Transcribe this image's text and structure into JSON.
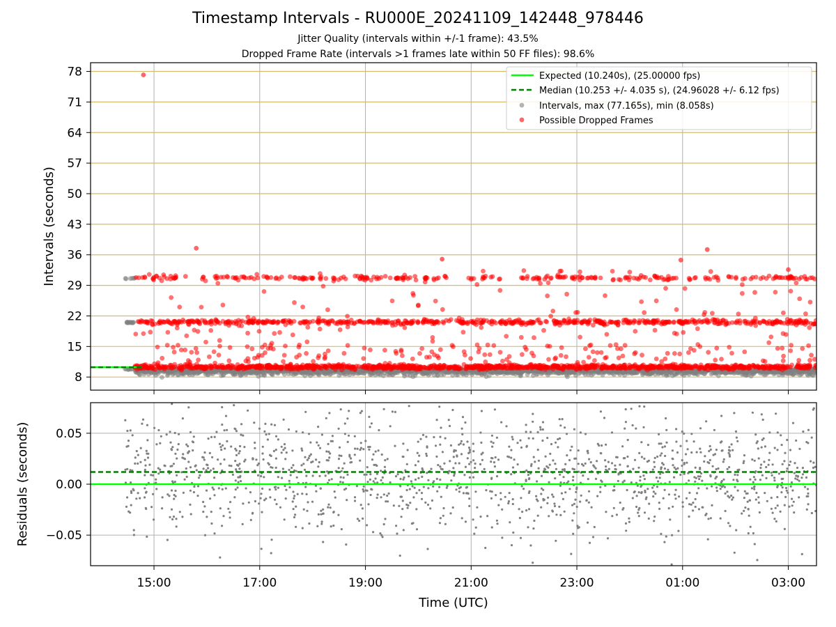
{
  "title": "Timestamp Intervals - RU000E_20241109_142448_978446",
  "subtitle_jitter": "Jitter Quality (intervals within +/-1 frame): 43.5%",
  "subtitle_dropped": "Dropped Frame Rate (intervals >1 frames late within 50 FF files): 98.6%",
  "colors": {
    "expected": "#00ff00",
    "median": "#007f00",
    "intervals": "#808080",
    "dropped": "#ff0000",
    "hgrid_top": "#d4bb6b",
    "grid": "#b0b0b0"
  },
  "chart_data": [
    {
      "type": "scatter",
      "panel": "intervals",
      "xlabel": "",
      "ylabel": "Intervals (seconds)",
      "x_axis": "Time (UTC)",
      "x_range": [
        "2024-11-09 13:48",
        "2024-11-10 03:32"
      ],
      "x_ticks": [
        "15:00",
        "17:00",
        "19:00",
        "21:00",
        "23:00",
        "01:00",
        "03:00"
      ],
      "ylim": [
        5,
        80
      ],
      "y_ticks": [
        8,
        15,
        22,
        29,
        36,
        43,
        50,
        57,
        64,
        71,
        78
      ],
      "grid": "on",
      "legend_position": "top-right",
      "legend": [
        "Expected (10.240s), (25.00000 fps)",
        "Median (10.253 +/- 4.035 s), (24.96028 +/- 6.12 fps)",
        "Intervals, max (77.165s), min (8.058s)",
        "Possible Dropped Frames"
      ],
      "expected_interval_s": 10.24,
      "median_interval_s": 10.253,
      "intervals_max_s": 77.165,
      "intervals_min_s": 8.058,
      "series": [
        {
          "name": "Intervals, max (77.165s), min (8.058s)",
          "approx_bands_s": [
            9.8,
            20.5,
            30.6
          ],
          "start_time": "14:27",
          "end_time": "03:32"
        },
        {
          "name": "Possible Dropped Frames",
          "approx_bands_s": [
            10.3,
            20.6,
            30.7
          ],
          "start_time": "14:38",
          "end_time": "03:32",
          "notable_points": [
            {
              "x": "14:48",
              "y": 77.2
            },
            {
              "x": "15:48",
              "y": 37.5
            },
            {
              "x": "20:27",
              "y": 35.0
            },
            {
              "x": "00:58",
              "y": 34.8
            },
            {
              "x": "01:28",
              "y": 37.2
            },
            {
              "x": "03:00",
              "y": 32.6
            }
          ]
        }
      ]
    },
    {
      "type": "scatter",
      "panel": "residuals",
      "xlabel": "Time (UTC)",
      "ylabel": "Residuals (seconds)",
      "x_ticks": [
        "15:00",
        "17:00",
        "19:00",
        "21:00",
        "23:00",
        "01:00",
        "03:00"
      ],
      "ylim": [
        -0.08,
        0.08
      ],
      "y_ticks": [
        "−0.05",
        "0.00",
        "0.05"
      ],
      "grid": "on",
      "expected_residual": 0.0,
      "median_residual": 0.012,
      "series": [
        {
          "name": "",
          "approx_mean": 0.01,
          "approx_spread": 0.03,
          "start_time": "14:27",
          "end_time": "03:32"
        }
      ]
    }
  ]
}
